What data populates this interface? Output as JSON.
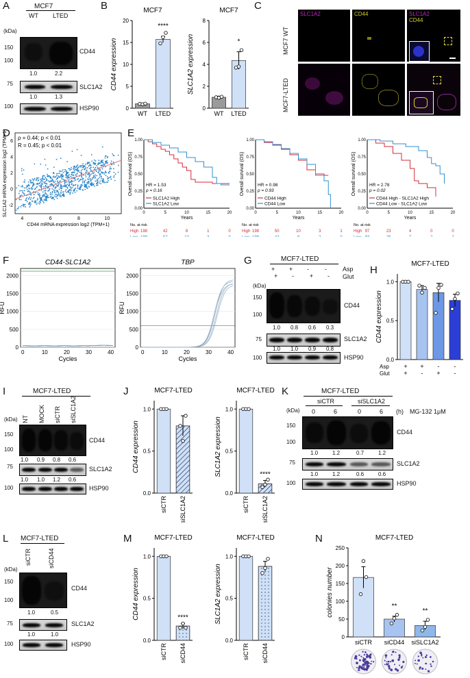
{
  "colors": {
    "wt": "#9a9a9a",
    "lted": "#cfe0f7",
    "high": "#d42a3a",
    "low": "#2f8fd0",
    "kd": "#8fb8ea",
    "asp_none": "#2b3fd6",
    "magenta": "#c02ac0",
    "yellow": "#d8d02a"
  },
  "panelA": {
    "letter": "A",
    "title": "MCF7",
    "kda": "(kDa)",
    "lanes": [
      "WT",
      "LTED"
    ],
    "rows": [
      {
        "label": "CD44",
        "markers": [
          "150",
          "100"
        ],
        "quant": [
          "1.0",
          "2.2"
        ]
      },
      {
        "label": "SLC1A2",
        "markers": [
          "75"
        ],
        "quant": [
          "1.0",
          "1.3"
        ]
      },
      {
        "label": "HSP90",
        "markers": [
          "100"
        ],
        "quant": []
      }
    ]
  },
  "panelB": {
    "letter": "B",
    "charts": [
      {
        "title": "MCF7",
        "ylabel": "CD44 expression",
        "ylim": [
          0,
          20
        ],
        "ticks": [
          "0",
          "5",
          "10",
          "15",
          "20"
        ],
        "categories": [
          "WT",
          "LTED"
        ],
        "values": [
          1.0,
          15.7
        ],
        "sig": "****"
      },
      {
        "title": "MCF7",
        "ylabel": "SLC1A2 expression",
        "ylim": [
          0,
          8
        ],
        "ticks": [
          "0",
          "2",
          "4",
          "6",
          "8"
        ],
        "categories": [
          "WT",
          "LTED"
        ],
        "values": [
          1.0,
          4.35
        ],
        "sig": "*"
      }
    ]
  },
  "panelC": {
    "letter": "C",
    "cols": [
      "SLC1A2",
      "CD44",
      "SLC1A2",
      "CD44"
    ],
    "rows": [
      "MCF7 WT",
      "MCF7-LTED"
    ]
  },
  "panelD": {
    "letter": "D",
    "stat1": "ρ = 0.44; p < 0.01",
    "stat2": "R = 0.45; p < 0.01",
    "ylabel": "SLC1A2 mRNA expression log2 (TPM+1)",
    "xlabel": "CD44 mRNA expression log2 (TPM+1)",
    "xticks": [
      "4",
      "6",
      "8",
      "10"
    ],
    "yticks": [
      "-2",
      "0",
      "2",
      "4",
      "6"
    ]
  },
  "panelE": {
    "letter": "E",
    "ylabel": "Overall survival (OS)",
    "xlabel": "Years",
    "yticks": [
      "0.00",
      "0.25",
      "0.50",
      "0.75",
      "1.00"
    ],
    "xticks": [
      "0",
      "5",
      "10",
      "15",
      "20"
    ],
    "risk_title": "No. at risk",
    "plots": [
      {
        "hr": "HR = 1.53",
        "p": "p = 0.16",
        "legend": [
          "SLC1A2 High",
          "SLC1A2 Low"
        ],
        "risk": [
          {
            "name": "High",
            "vals": [
              "198",
              "42",
              "8",
              "1",
              "0"
            ]
          },
          {
            "name": "Low",
            "vals": [
              "199",
              "57",
              "10",
              "3",
              "0"
            ]
          }
        ]
      },
      {
        "hr": "HR = 0.98",
        "p": "p = 0.93",
        "legend": [
          "CD44 High",
          "CD44 Low"
        ],
        "risk": [
          {
            "name": "High",
            "vals": [
              "198",
              "50",
              "10",
              "3",
              "1"
            ]
          },
          {
            "name": "Low",
            "vals": [
              "199",
              "42",
              "9",
              "2",
              "0"
            ]
          }
        ]
      },
      {
        "hr": "HR = 2.78",
        "p": "p = 0.02",
        "legend": [
          "CD44 High - SLC1A2 High",
          "CD44 Low - SLC1A2 Low"
        ],
        "risk": [
          {
            "name": "High",
            "vals": [
              "97",
              "23",
              "4",
              "0",
              "0"
            ]
          },
          {
            "name": "Low",
            "vals": [
              "83",
              "25",
              "7",
              "2",
              "2"
            ]
          }
        ]
      }
    ]
  },
  "panelF": {
    "letter": "F",
    "plots": [
      {
        "title": "CD44-SLC1A2",
        "ylabel": "RFU",
        "xlabel": "Cycles",
        "yticks": [
          "0",
          "500",
          "1000",
          "1500",
          "2000"
        ],
        "xticks": [
          "0",
          "10",
          "20",
          "30",
          "40"
        ]
      },
      {
        "title": "TBP",
        "ylabel": "RFU",
        "xlabel": "Cycles",
        "yticks": [
          "0",
          "500",
          "1000",
          "1500",
          "2000"
        ],
        "xticks": [
          "0",
          "10",
          "20",
          "30",
          "40"
        ]
      }
    ]
  },
  "panelG": {
    "letter": "G",
    "title": "MCF7-LTED",
    "kda": "(kDa)",
    "asp_label": "Asp",
    "glut_label": "Glut",
    "asp": [
      "+",
      "+",
      "-",
      "-"
    ],
    "glut": [
      "+",
      "-",
      "+",
      "-"
    ],
    "rows": [
      {
        "label": "CD44",
        "markers": [
          "150",
          "100"
        ],
        "quant": [
          "1.0",
          "0.8",
          "0.6",
          "0.3"
        ]
      },
      {
        "label": "SLC1A2",
        "markers": [
          "75"
        ],
        "quant": [
          "1.0",
          "1.0",
          "0.9",
          "0.8"
        ]
      },
      {
        "label": "HSP90",
        "markers": [
          "100"
        ],
        "quant": []
      }
    ]
  },
  "panelH": {
    "letter": "H",
    "title": "MCF7-LTED",
    "ylabel": "CD44 expression",
    "ticks": [
      "0.0",
      "0.5",
      "1.0"
    ],
    "ylim": [
      0,
      1.1
    ],
    "values": [
      1.0,
      0.9,
      0.86,
      0.76
    ],
    "asp_label": "Asp",
    "glut_label": "Glut",
    "asp": [
      "+",
      "+",
      "-",
      "-"
    ],
    "glut": [
      "+",
      "-",
      "+",
      "-"
    ]
  },
  "panelI": {
    "letter": "I",
    "title": "MCF7-LTED",
    "kda": "(kDa)",
    "lanes": [
      "NT",
      "MOCK",
      "siCTR",
      "siSLC1A2"
    ],
    "rows": [
      {
        "label": "CD44",
        "markers": [
          "150",
          "100"
        ],
        "quant": [
          "1.0",
          "0.9",
          "0.8",
          "0.6"
        ]
      },
      {
        "label": "SLC1A2",
        "markers": [
          "75"
        ],
        "quant": [
          "1.0",
          "1.0",
          "1.2",
          "0.6"
        ]
      },
      {
        "label": "HSP90",
        "markers": [
          "100"
        ],
        "quant": []
      }
    ]
  },
  "panelJ": {
    "letter": "J",
    "charts": [
      {
        "title": "MCF7-LTED",
        "ylabel": "CD44 expression",
        "ticks": [
          "0.0",
          "0.5",
          "1.0"
        ],
        "ylim": [
          0,
          1.1
        ],
        "categories": [
          "siCTR",
          "siSLC1A2"
        ],
        "values": [
          1.0,
          0.8
        ],
        "sig": ""
      },
      {
        "title": "MCF7-LTED",
        "ylabel": "SLC1A2 expression",
        "ticks": [
          "0.0",
          "0.5",
          "1.0"
        ],
        "ylim": [
          0,
          1.1
        ],
        "categories": [
          "siCTR",
          "siSLC1A2"
        ],
        "values": [
          1.0,
          0.11
        ],
        "sig": "****"
      }
    ]
  },
  "panelK": {
    "letter": "K",
    "title": "MCF7-LTED",
    "kda": "(kDa)",
    "groups": [
      "siCTR",
      "siSLC1A2"
    ],
    "times": [
      "0",
      "6",
      "0",
      "6"
    ],
    "h": "(h)",
    "treatment": "MG-132 1μM",
    "rows": [
      {
        "label": "CD44",
        "markers": [
          "150",
          "100"
        ],
        "quant": [
          "1.0",
          "1.2",
          "0.7",
          "1.2"
        ]
      },
      {
        "label": "SLC1A2",
        "markers": [
          "75"
        ],
        "quant": [
          "1.0",
          "1.2",
          "0.6",
          "0.6"
        ]
      },
      {
        "label": "HSP90",
        "markers": [
          "100"
        ],
        "quant": []
      }
    ]
  },
  "panelL": {
    "letter": "L",
    "title": "MCF7-LTED",
    "kda": "(kDa)",
    "lanes": [
      "siCTR",
      "siCD44"
    ],
    "rows": [
      {
        "label": "CD44",
        "markers": [
          "150",
          "100"
        ],
        "quant": [
          "1.0",
          "0.5"
        ]
      },
      {
        "label": "SLC1A2",
        "markers": [
          "75"
        ],
        "quant": [
          "1.0",
          "1.0"
        ]
      },
      {
        "label": "HSP90",
        "markers": [
          "100"
        ],
        "quant": []
      }
    ]
  },
  "panelM": {
    "letter": "M",
    "charts": [
      {
        "title": "MCF7-LTED",
        "ylabel": "CD44 expression",
        "ticks": [
          "0.0",
          "0.5",
          "1.0"
        ],
        "ylim": [
          0,
          1.1
        ],
        "categories": [
          "siCTR",
          "siCD44"
        ],
        "values": [
          1.0,
          0.17
        ],
        "sig": "****"
      },
      {
        "title": "MCF7-LTED",
        "ylabel": "SLC1A2 expression",
        "ticks": [
          "0.0",
          "0.5",
          "1.0"
        ],
        "ylim": [
          0,
          1.1
        ],
        "categories": [
          "siCTR",
          "siCD44"
        ],
        "values": [
          1.0,
          0.88
        ],
        "sig": ""
      }
    ]
  },
  "panelN": {
    "letter": "N",
    "title": "MCF7-LTED",
    "ylabel": "colonies number",
    "ticks": [
      "0",
      "50",
      "100",
      "150",
      "200",
      "250"
    ],
    "ylim": [
      0,
      250
    ],
    "categories": [
      "siCTR",
      "siCD44",
      "siSLC1A2"
    ],
    "values": [
      167,
      50,
      32
    ],
    "sig": [
      "",
      "**",
      "**"
    ]
  },
  "chart_data": [
    {
      "type": "bar",
      "title": "MCF7",
      "ylabel": "CD44 expression",
      "categories": [
        "WT",
        "LTED"
      ],
      "values": [
        1.0,
        15.7
      ],
      "ylim": [
        0,
        20
      ]
    },
    {
      "type": "bar",
      "title": "MCF7",
      "ylabel": "SLC1A2 expression",
      "categories": [
        "WT",
        "LTED"
      ],
      "values": [
        1.0,
        4.35
      ],
      "ylim": [
        0,
        8
      ]
    },
    {
      "type": "bar",
      "title": "MCF7-LTED",
      "ylabel": "CD44 expression",
      "categories": [
        "+/+",
        "+/-",
        "-/+",
        "-/-"
      ],
      "values": [
        1.0,
        0.9,
        0.86,
        0.76
      ],
      "ylim": [
        0,
        1.1
      ]
    },
    {
      "type": "bar",
      "title": "MCF7-LTED",
      "ylabel": "CD44 expression",
      "categories": [
        "siCTR",
        "siSLC1A2"
      ],
      "values": [
        1.0,
        0.8
      ],
      "ylim": [
        0,
        1.1
      ]
    },
    {
      "type": "bar",
      "title": "MCF7-LTED",
      "ylabel": "SLC1A2 expression",
      "categories": [
        "siCTR",
        "siSLC1A2"
      ],
      "values": [
        1.0,
        0.11
      ],
      "ylim": [
        0,
        1.1
      ]
    },
    {
      "type": "bar",
      "title": "MCF7-LTED",
      "ylabel": "CD44 expression",
      "categories": [
        "siCTR",
        "siCD44"
      ],
      "values": [
        1.0,
        0.17
      ],
      "ylim": [
        0,
        1.1
      ]
    },
    {
      "type": "bar",
      "title": "MCF7-LTED",
      "ylabel": "SLC1A2 expression",
      "categories": [
        "siCTR",
        "siCD44"
      ],
      "values": [
        1.0,
        0.88
      ],
      "ylim": [
        0,
        1.1
      ]
    },
    {
      "type": "bar",
      "title": "MCF7-LTED",
      "ylabel": "colonies number",
      "categories": [
        "siCTR",
        "siCD44",
        "siSLC1A2"
      ],
      "values": [
        167,
        50,
        32
      ],
      "ylim": [
        0,
        250
      ]
    }
  ]
}
